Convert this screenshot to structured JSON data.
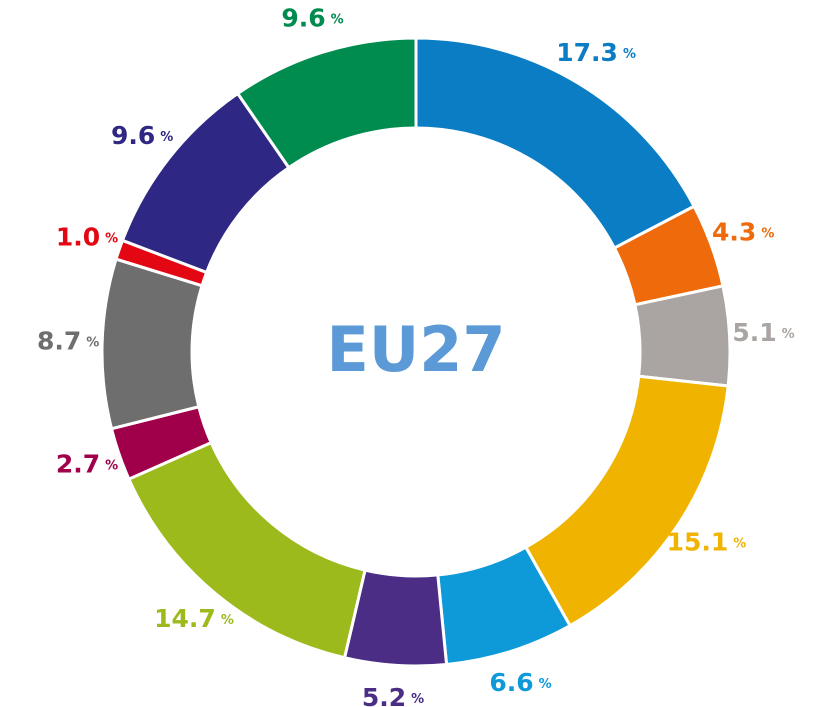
{
  "chart_data": {
    "type": "donut",
    "center_label": "EU27",
    "unit": "%",
    "values": [
      17.3,
      4.3,
      5.1,
      15.1,
      6.6,
      5.2,
      14.7,
      2.7,
      8.7,
      1.0,
      9.6,
      9.6
    ],
    "value_labels": [
      "17.3",
      "4.3",
      "5.1",
      "15.1",
      "6.6",
      "5.2",
      "14.7",
      "2.7",
      "8.7",
      "1.0",
      "9.6",
      "9.6"
    ],
    "colors": [
      "#0a7dc4",
      "#ee6a0b",
      "#aaa5a2",
      "#f0b400",
      "#0e9ad8",
      "#4b2d85",
      "#9cba1c",
      "#a0004a",
      "#6e6e6e",
      "#e30613",
      "#2e2783",
      "#008b4f"
    ]
  }
}
